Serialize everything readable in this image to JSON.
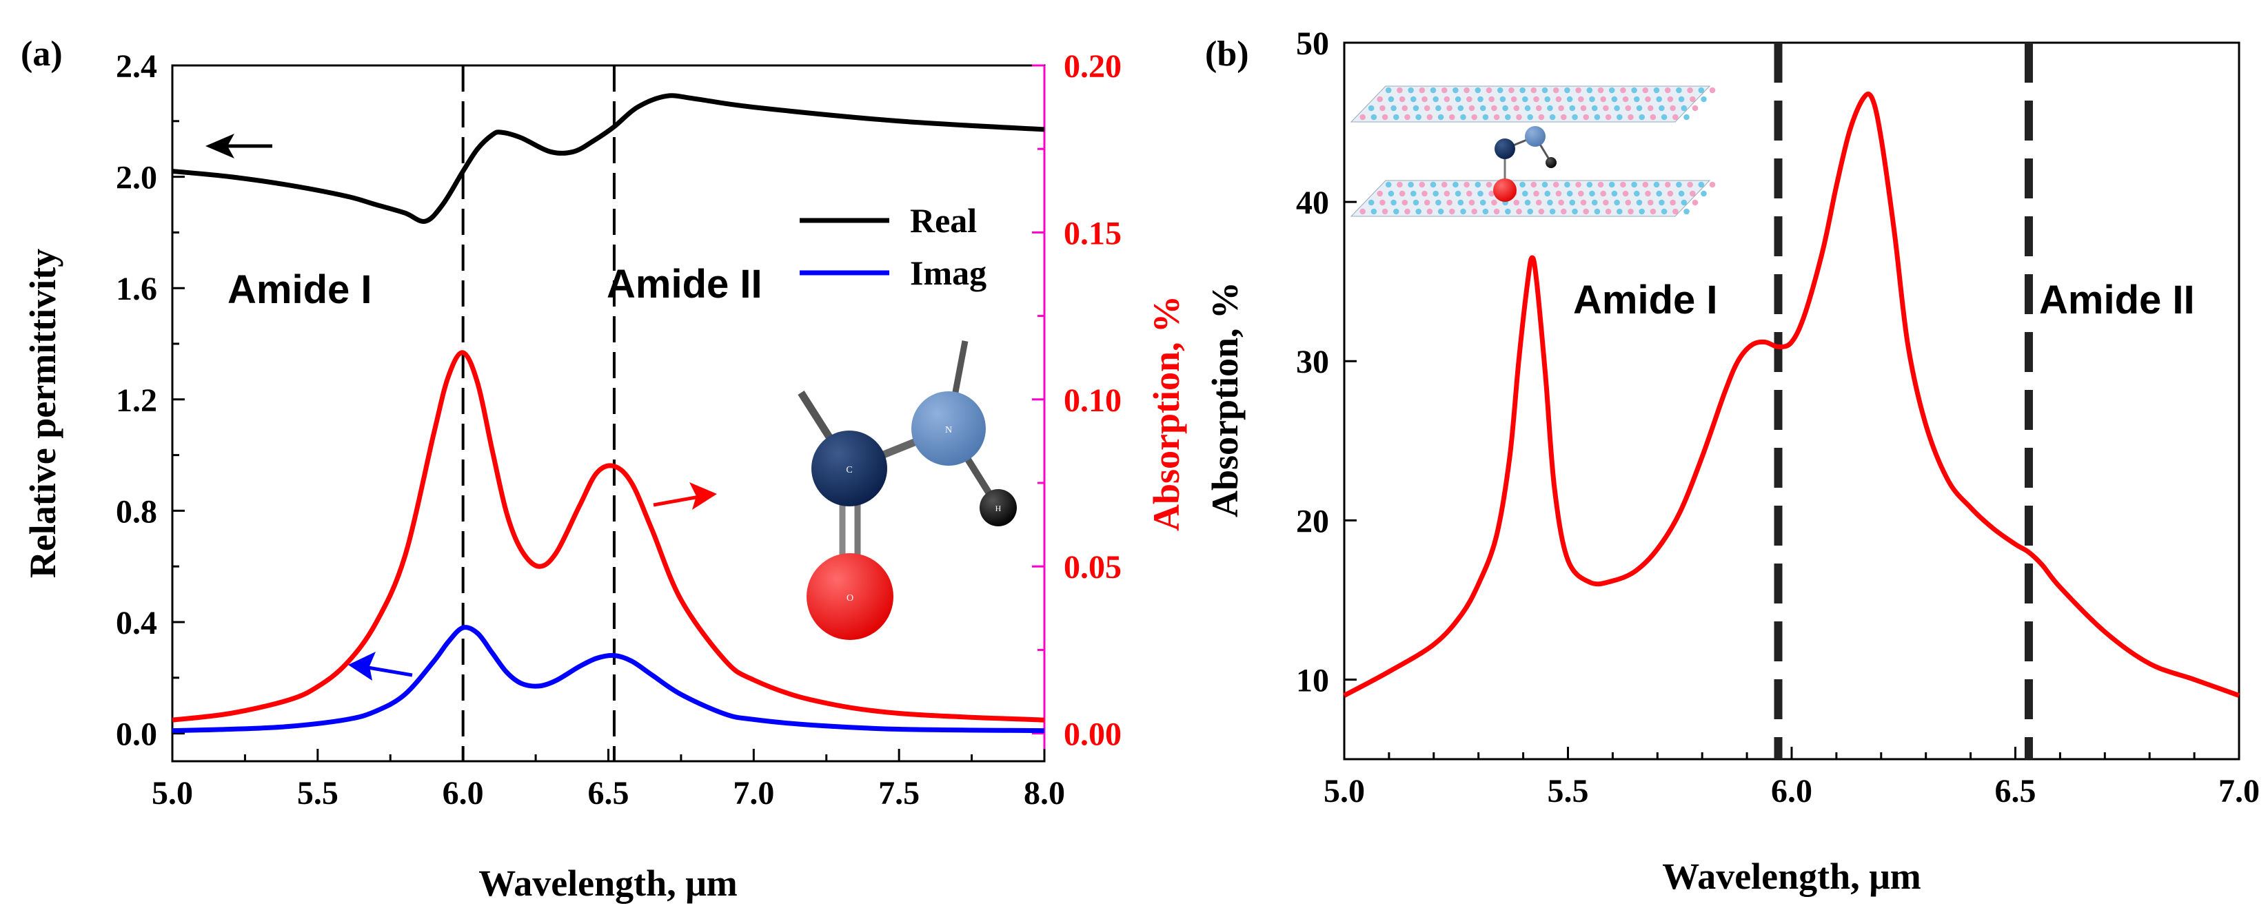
{
  "chart_data": [
    {
      "panel": "a",
      "panel_label": "(a)",
      "type": "line",
      "xlabel": "Wavelength, μm",
      "ylabel_left": "Relative permittivity",
      "ylabel_right": "Absorption, %",
      "xlim": [
        5.0,
        8.0
      ],
      "ylim_left": [
        -0.1,
        2.4
      ],
      "ylim_right": [
        -0.00833,
        0.2
      ],
      "x_ticks": [
        "5.0",
        "5.5",
        "6.0",
        "6.5",
        "7.0",
        "7.5",
        "8.0"
      ],
      "y_ticks_left": [
        "0.0",
        "0.4",
        "0.8",
        "1.2",
        "1.6",
        "2.0",
        "2.4"
      ],
      "y_ticks_right": [
        "0.00",
        "0.05",
        "0.10",
        "0.15",
        "0.20"
      ],
      "vlines": [
        6.0,
        6.52
      ],
      "annotations": [
        "Amide I",
        "Amide II"
      ],
      "legend": [
        "Real",
        "Imag"
      ],
      "molecule_labels": [
        "C",
        "N",
        "O",
        "H"
      ],
      "colors": {
        "real": "#000000",
        "imag": "#0000ff",
        "absorption": "#ff0000",
        "right_axis": "#ff00cc"
      },
      "series": [
        {
          "name": "Real",
          "axis": "left",
          "color": "#000000",
          "x": [
            5.0,
            5.2,
            5.4,
            5.6,
            5.7,
            5.8,
            5.87,
            5.93,
            6.0,
            6.05,
            6.1,
            6.13,
            6.2,
            6.3,
            6.38,
            6.45,
            6.52,
            6.6,
            6.7,
            6.8,
            7.0,
            7.5,
            8.0
          ],
          "y": [
            2.02,
            2.0,
            1.97,
            1.93,
            1.9,
            1.87,
            1.84,
            1.9,
            2.02,
            2.1,
            2.15,
            2.16,
            2.14,
            2.09,
            2.09,
            2.13,
            2.18,
            2.25,
            2.29,
            2.28,
            2.25,
            2.2,
            2.17
          ]
        },
        {
          "name": "Imag",
          "axis": "left",
          "color": "#0000ff",
          "x": [
            5.0,
            5.2,
            5.4,
            5.6,
            5.7,
            5.8,
            5.9,
            5.95,
            6.0,
            6.05,
            6.1,
            6.15,
            6.2,
            6.26,
            6.32,
            6.4,
            6.46,
            6.52,
            6.58,
            6.65,
            6.75,
            6.9,
            7.0,
            7.2,
            7.5,
            8.0
          ],
          "y": [
            0.01,
            0.015,
            0.025,
            0.05,
            0.08,
            0.14,
            0.26,
            0.33,
            0.38,
            0.36,
            0.29,
            0.22,
            0.18,
            0.17,
            0.19,
            0.24,
            0.27,
            0.28,
            0.26,
            0.21,
            0.14,
            0.07,
            0.05,
            0.03,
            0.015,
            0.01
          ]
        },
        {
          "name": "Absorption",
          "axis": "right",
          "color": "#ff0000",
          "x": [
            5.0,
            5.2,
            5.4,
            5.5,
            5.6,
            5.7,
            5.8,
            5.9,
            5.95,
            6.0,
            6.05,
            6.1,
            6.15,
            6.2,
            6.26,
            6.32,
            6.4,
            6.46,
            6.52,
            6.58,
            6.65,
            6.75,
            6.9,
            7.0,
            7.2,
            7.5,
            8.0
          ],
          "y": [
            0.004,
            0.006,
            0.01,
            0.014,
            0.021,
            0.033,
            0.053,
            0.09,
            0.107,
            0.114,
            0.105,
            0.085,
            0.066,
            0.055,
            0.05,
            0.054,
            0.068,
            0.078,
            0.08,
            0.075,
            0.061,
            0.04,
            0.022,
            0.016,
            0.01,
            0.006,
            0.004
          ]
        }
      ]
    },
    {
      "panel": "b",
      "panel_label": "(b)",
      "type": "line",
      "xlabel": "Wavelength, μm",
      "ylabel": "Absorption, %",
      "xlim": [
        5.0,
        7.0
      ],
      "ylim": [
        5,
        50
      ],
      "x_ticks": [
        "5.0",
        "5.5",
        "6.0",
        "6.5",
        "7.0"
      ],
      "y_ticks": [
        "10",
        "20",
        "30",
        "40",
        "50"
      ],
      "vlines": [
        5.97,
        6.53
      ],
      "annotations": [
        "Amide I",
        "Amide II"
      ],
      "series": [
        {
          "name": "Absorption",
          "color": "#ff0000",
          "x": [
            5.0,
            5.1,
            5.2,
            5.26,
            5.3,
            5.34,
            5.37,
            5.39,
            5.41,
            5.42,
            5.43,
            5.45,
            5.47,
            5.5,
            5.55,
            5.6,
            5.65,
            5.7,
            5.75,
            5.8,
            5.85,
            5.88,
            5.91,
            5.94,
            5.97,
            6.0,
            6.03,
            6.07,
            6.1,
            6.13,
            6.16,
            6.18,
            6.2,
            6.23,
            6.26,
            6.3,
            6.35,
            6.4,
            6.45,
            6.5,
            6.53,
            6.56,
            6.6,
            6.7,
            6.8,
            6.9,
            7.0
          ],
          "y": [
            9,
            10.5,
            12.2,
            14,
            16,
            19,
            24,
            30,
            35,
            36.5,
            35,
            29,
            22,
            17.5,
            16.1,
            16.2,
            16.8,
            18.2,
            20.5,
            24,
            28,
            30,
            31,
            31.2,
            30.9,
            31.2,
            33,
            37,
            41,
            44.5,
            46.5,
            46.5,
            44,
            38,
            31,
            26,
            22.5,
            20.8,
            19.5,
            18.5,
            18,
            17.2,
            15.8,
            13,
            11,
            10,
            9
          ]
        }
      ]
    }
  ]
}
